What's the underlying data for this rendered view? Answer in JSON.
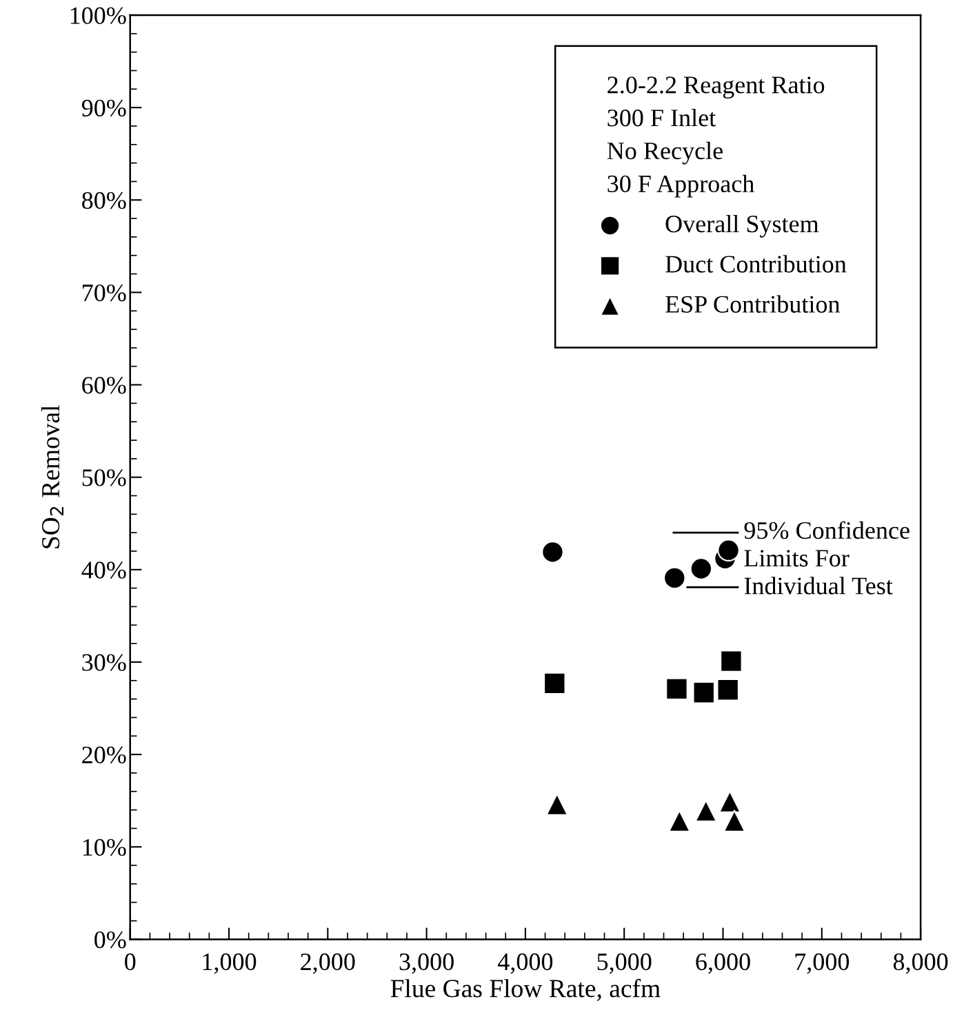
{
  "chart_data": {
    "type": "scatter",
    "xlabel": "Flue Gas Flow Rate, acfm",
    "ylabel": "SO$_{2}$ Removal",
    "legend_title": "2.0-2.2 Reagent Ratio\n300 F Inlet\nNo Recycle\n30 F Approach",
    "legend": "top right",
    "grid": false,
    "xlim": [
      0,
      8000
    ],
    "xticks": [
      0,
      {
        "value": 1000,
        "label": "1,000"
      },
      {
        "value": 2000,
        "label": "2,000"
      },
      {
        "value": 3000,
        "label": "3,000"
      },
      {
        "value": 4000,
        "label": "4,000"
      },
      {
        "value": 5000,
        "label": "5,000"
      },
      {
        "value": 6000,
        "label": "6,000"
      },
      {
        "value": 7000,
        "label": "7,000"
      },
      {
        "value": 8000,
        "label": "8,000"
      }
    ],
    "ylim": [
      0,
      100
    ],
    "yticks": [
      {
        "value": 0,
        "label": "0%"
      },
      {
        "value": 10,
        "label": "10%"
      },
      {
        "value": 20,
        "label": "20%"
      },
      {
        "value": 30,
        "label": "30%"
      },
      {
        "value": 40,
        "label": "40%"
      },
      {
        "value": 50,
        "label": "50%"
      },
      {
        "value": 60,
        "label": "60%"
      },
      {
        "value": 70,
        "label": "70%"
      },
      {
        "value": 80,
        "label": "80%"
      },
      {
        "value": 90,
        "label": "90%"
      },
      {
        "value": 100,
        "label": "100%"
      }
    ],
    "series": [
      {
        "name": "Overall System",
        "color": "#000000",
        "marker": "circle",
        "x": [
          4276,
          5510,
          5779,
          6021,
          6056
        ],
        "values": [
          41.9,
          39.1,
          40.1,
          41.2,
          42.1
        ]
      },
      {
        "name": "Duct Contribution",
        "color": "#000000",
        "marker": "square",
        "x": [
          4296,
          5532,
          5806,
          6050,
          6083
        ],
        "values": [
          27.7,
          27.1,
          26.7,
          27.0,
          30.1
        ]
      },
      {
        "name": "ESP Contribution",
        "color": "#000000",
        "marker": "triangle",
        "x": [
          4320,
          5559,
          5827,
          6069,
          6115
        ],
        "values": [
          14.6,
          12.8,
          13.9,
          14.9,
          12.8
        ]
      },
      {
        "type": "line",
        "color": "#000000",
        "marker": "none",
        "x": [
          5500,
          6150
        ],
        "values": [
          44.0,
          44.0
        ]
      },
      {
        "type": "line",
        "color": "#000000",
        "marker": "none",
        "x": [
          5640,
          6150
        ],
        "values": [
          38.1,
          38.1
        ]
      }
    ],
    "annotations": [
      {
        "text": "95% Confidence\nLimits For\nIndividual Test",
        "x": 6150,
        "y": 41
      }
    ]
  }
}
